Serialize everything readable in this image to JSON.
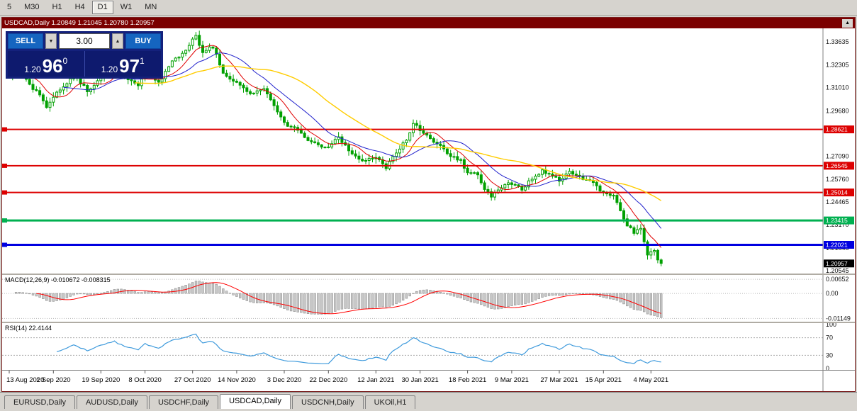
{
  "toolbar": {
    "timeframes": [
      {
        "label": "5",
        "active": false
      },
      {
        "label": "M30",
        "active": false
      },
      {
        "label": "H1",
        "active": false
      },
      {
        "label": "H4",
        "active": false
      },
      {
        "label": "D1",
        "active": true
      },
      {
        "label": "W1",
        "active": false
      },
      {
        "label": "MN",
        "active": false
      }
    ]
  },
  "chart_window": {
    "title": "USDCAD,Daily 1.20849 1.21045 1.20780 1.20957"
  },
  "icons": {
    "volume_down_arrow": "▼",
    "volume_up_arrow": "▲",
    "collapse_arrow": "▲"
  },
  "trade_panel": {
    "sell_label": "SELL",
    "buy_label": "BUY",
    "volume": "3.00",
    "sell_price": {
      "prefix": "1.20",
      "big": "96",
      "sup": "0"
    },
    "buy_price": {
      "prefix": "1.20",
      "big": "97",
      "sup": "1"
    }
  },
  "chart_data": {
    "type": "candlestick",
    "symbol": "USDCAD",
    "timeframe": "Daily",
    "ohlc_current": {
      "open": 1.20849,
      "high": 1.21045,
      "low": 1.2078,
      "close": 1.20957
    },
    "bar_count": 193,
    "price_top": 1.344,
    "price_bottom": 1.2038,
    "close_anchors": [
      [
        0,
        1.3155
      ],
      [
        2,
        1.3212
      ],
      [
        4,
        1.3165
      ],
      [
        6,
        1.3118
      ],
      [
        9,
        1.3058
      ],
      [
        11,
        1.2992
      ],
      [
        13,
        1.3042
      ],
      [
        15,
        1.3096
      ],
      [
        19,
        1.3168
      ],
      [
        23,
        1.3085
      ],
      [
        27,
        1.3152
      ],
      [
        31,
        1.3218
      ],
      [
        35,
        1.315
      ],
      [
        38,
        1.3118
      ],
      [
        40,
        1.3186
      ],
      [
        44,
        1.3126
      ],
      [
        48,
        1.3256
      ],
      [
        52,
        1.3312
      ],
      [
        55,
        1.34
      ],
      [
        57,
        1.3302
      ],
      [
        60,
        1.3336
      ],
      [
        63,
        1.3186
      ],
      [
        67,
        1.3126
      ],
      [
        71,
        1.3064
      ],
      [
        75,
        1.3096
      ],
      [
        78,
        1.2996
      ],
      [
        81,
        1.2896
      ],
      [
        85,
        1.2864
      ],
      [
        88,
        1.2806
      ],
      [
        91,
        1.2776
      ],
      [
        94,
        1.2756
      ],
      [
        97,
        1.2816
      ],
      [
        100,
        1.2742
      ],
      [
        104,
        1.2686
      ],
      [
        108,
        1.2706
      ],
      [
        111,
        1.2646
      ],
      [
        114,
        1.2726
      ],
      [
        117,
        1.2802
      ],
      [
        119,
        1.2896
      ],
      [
        121,
        1.2862
      ],
      [
        124,
        1.2806
      ],
      [
        127,
        1.2762
      ],
      [
        130,
        1.2706
      ],
      [
        133,
        1.2682
      ],
      [
        135,
        1.2616
      ],
      [
        138,
        1.2602
      ],
      [
        140,
        1.2526
      ],
      [
        142,
        1.2482
      ],
      [
        145,
        1.2536
      ],
      [
        148,
        1.2556
      ],
      [
        151,
        1.2516
      ],
      [
        154,
        1.2586
      ],
      [
        157,
        1.2622
      ],
      [
        160,
        1.2592
      ],
      [
        162,
        1.2572
      ],
      [
        165,
        1.2616
      ],
      [
        168,
        1.2592
      ],
      [
        171,
        1.2566
      ],
      [
        175,
        1.2502
      ],
      [
        178,
        1.2482
      ],
      [
        180,
        1.2392
      ],
      [
        182,
        1.2312
      ],
      [
        184,
        1.2272
      ],
      [
        186,
        1.2292
      ],
      [
        188,
        1.2152
      ],
      [
        190,
        1.2168
      ],
      [
        191,
        1.211
      ],
      [
        192,
        1.20957
      ]
    ],
    "candle_up_color": "#ffffff",
    "candle_down_color": "#00a000",
    "candle_border_color": "#00a000",
    "moving_averages": [
      {
        "name": "ma-fast-line",
        "period": 8,
        "color": "#e00000",
        "width": 1
      },
      {
        "name": "ma-medium-line",
        "period": 17,
        "color": "#2222cc",
        "width": 1
      },
      {
        "name": "ma-slow-line",
        "period": 38,
        "color": "#ffcc00",
        "width": 1.4
      }
    ],
    "horizontal_lines": [
      {
        "price": 1.28621,
        "label": "1.28621",
        "color": "#dd0000",
        "width": 2
      },
      {
        "price": 1.26545,
        "label": "1.26545",
        "color": "#dd0000",
        "width": 2
      },
      {
        "price": 1.25014,
        "label": "1.25014",
        "color": "#dd0000",
        "width": 2
      },
      {
        "price": 1.23415,
        "label": "1.23415",
        "color": "#00b050",
        "width": 3
      },
      {
        "price": 1.22021,
        "label": "1.22021",
        "color": "#0000e0",
        "width": 3
      }
    ],
    "current_price_tag": {
      "price": 1.20957,
      "label": "1.20957",
      "color": "#000000"
    },
    "price_axis_labels": [
      "1.33635",
      "1.32305",
      "1.31010",
      "1.29680",
      "1.27090",
      "1.25760",
      "1.24465",
      "1.23170",
      "1.21845",
      "1.20545"
    ],
    "date_labels": [
      "13 Aug 2020",
      "1 Sep 2020",
      "19 Sep 2020",
      "8 Oct 2020",
      "27 Oct 2020",
      "14 Nov 2020",
      "3 Dec 2020",
      "22 Dec 2020",
      "12 Jan 2021",
      "30 Jan 2021",
      "18 Feb 2021",
      "9 Mar 2021",
      "27 Mar 2021",
      "15 Apr 2021",
      "4 May 2021"
    ],
    "date_label_indices": [
      0,
      13,
      27,
      40,
      54,
      67,
      81,
      94,
      108,
      121,
      135,
      148,
      162,
      175,
      189
    ],
    "macd": {
      "label": "MACD(12,26,9) -0.010672 -0.008315",
      "fast": 12,
      "slow": 26,
      "signal": 9,
      "main_value": -0.010672,
      "signal_value": -0.008315,
      "axis_labels": [
        "0.00652",
        "0.00",
        "-0.01149"
      ],
      "axis_values": [
        0.00652,
        0,
        -0.01149
      ],
      "value_top": 0.0085,
      "value_bottom": -0.013,
      "histogram_color": "#c8c8c8",
      "histogram_stroke": "#8f8f8f",
      "signal_color": "#ff0000"
    },
    "rsi": {
      "label": "RSI(14) 22.4144",
      "period": 14,
      "current": 22.4144,
      "levels": [
        100,
        70,
        30,
        0
      ],
      "dashed_levels": [
        70,
        30
      ],
      "line_color": "#3e9adc"
    }
  },
  "tabs": [
    {
      "label": "EURUSD,Daily",
      "active": false
    },
    {
      "label": "AUDUSD,Daily",
      "active": false
    },
    {
      "label": "USDCHF,Daily",
      "active": false
    },
    {
      "label": "USDCAD,Daily",
      "active": true
    },
    {
      "label": "USDCNH,Daily",
      "active": false
    },
    {
      "label": "UKOil,H1",
      "active": false
    }
  ]
}
